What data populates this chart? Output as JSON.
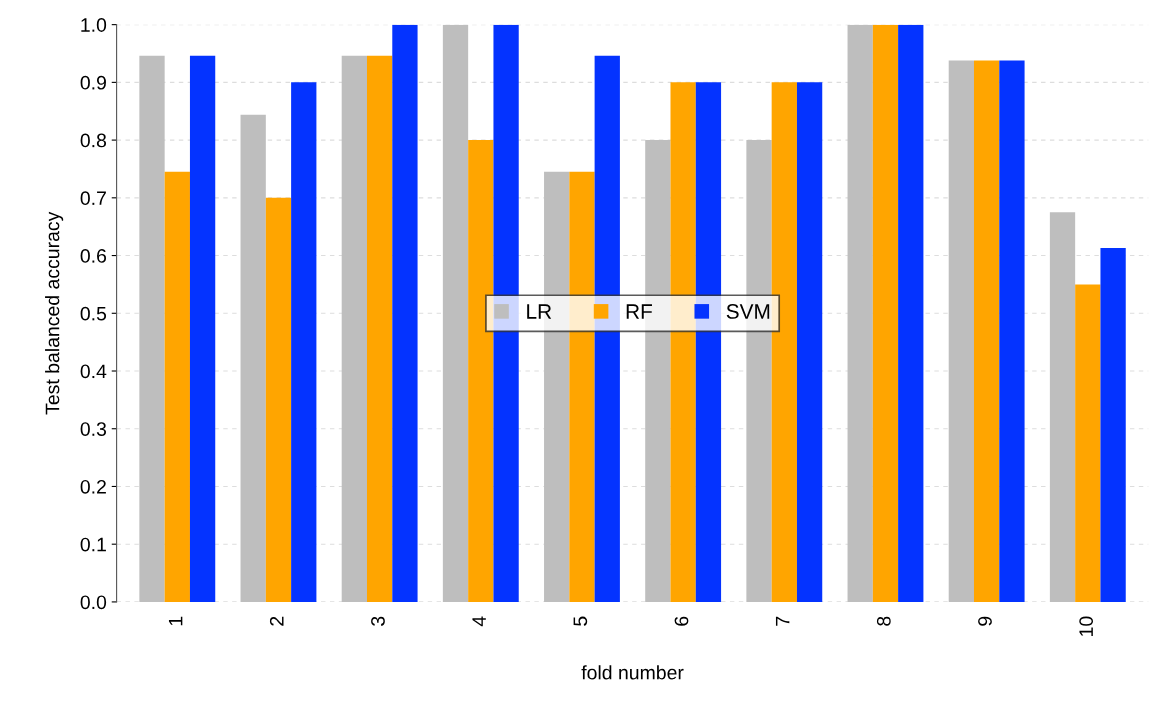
{
  "chart_data": {
    "type": "bar",
    "xlabel": "fold number",
    "ylabel": "Test balanced accuracy",
    "categories": [
      "1",
      "2",
      "3",
      "4",
      "5",
      "6",
      "7",
      "8",
      "9",
      "10"
    ],
    "series": [
      {
        "name": "LR",
        "color": "#bebebe",
        "values": [
          0.946,
          0.844,
          0.946,
          1.0,
          0.745,
          0.8,
          0.8,
          1.0,
          0.938,
          0.675
        ]
      },
      {
        "name": "RF",
        "color": "#ffa500",
        "values": [
          0.745,
          0.7,
          0.946,
          0.8,
          0.745,
          0.9,
          0.9,
          1.0,
          0.938,
          0.55
        ]
      },
      {
        "name": "SVM",
        "color": "#0433ff",
        "values": [
          0.946,
          0.9,
          1.0,
          1.0,
          0.946,
          0.9,
          0.9,
          1.0,
          0.938,
          0.613
        ]
      }
    ],
    "ylim": [
      0,
      1
    ],
    "yticks": [
      {
        "value": 0,
        "label": "0.0"
      },
      0.1,
      0.2,
      0.3,
      0.4,
      0.5,
      0.6,
      0.7,
      0.8,
      0.9,
      {
        "value": 1,
        "label": "1.0"
      }
    ],
    "grid": "y",
    "legend": "center"
  }
}
